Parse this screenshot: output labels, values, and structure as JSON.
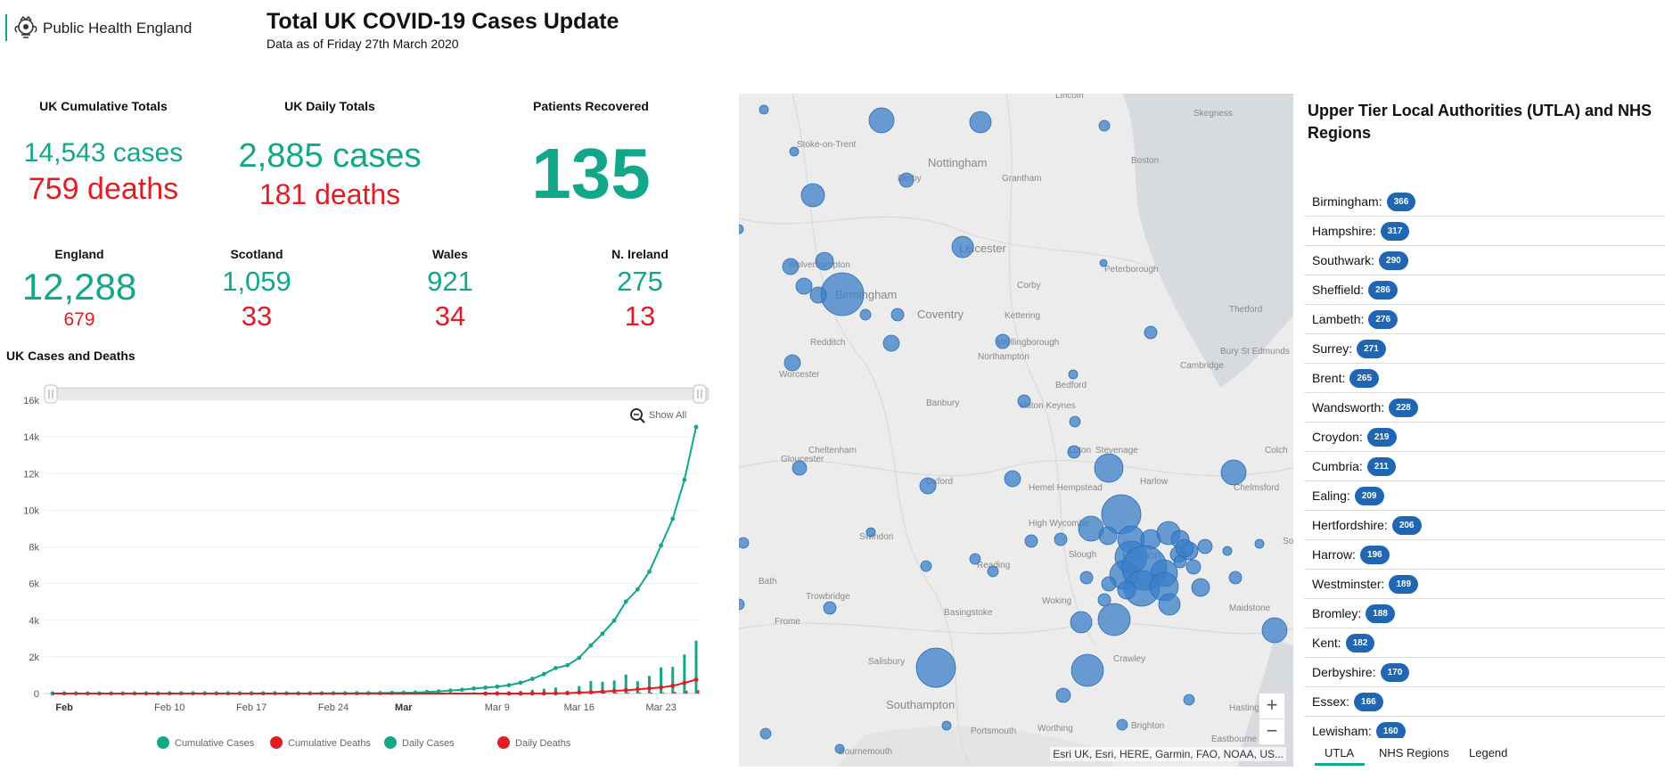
{
  "header": {
    "org": "Public Health England",
    "title": "Total UK COVID-19 Cases Update",
    "subtitle": "Data as of Friday 27th March 2020"
  },
  "cumulative": {
    "label": "UK Cumulative Totals",
    "cases": "14,543 cases",
    "deaths": "759 deaths"
  },
  "daily": {
    "label": "UK Daily Totals",
    "cases": "2,885 cases",
    "deaths": "181 deaths"
  },
  "recovered": {
    "label": "Patients Recovered",
    "value": "135"
  },
  "nations": [
    {
      "name": "England",
      "cases": "12,288",
      "deaths": "679"
    },
    {
      "name": "Scotland",
      "cases": "1,059",
      "deaths": "33"
    },
    {
      "name": "Wales",
      "cases": "921",
      "deaths": "34"
    },
    {
      "name": "N. Ireland",
      "cases": "275",
      "deaths": "13"
    }
  ],
  "chart": {
    "title": "UK Cases and Deaths",
    "show_all": "Show All"
  },
  "chart_data": {
    "type": "line",
    "x_tick_labels": [
      "Feb",
      "Feb 10",
      "Feb 17",
      "Feb 24",
      "Mar",
      "Mar 9",
      "Mar 16",
      "Mar 23"
    ],
    "y_tick_labels": [
      "0",
      "2k",
      "4k",
      "6k",
      "8k",
      "10k",
      "12k",
      "14k",
      "16k"
    ],
    "ylim": [
      0,
      16000
    ],
    "x_range": [
      "Jan 31",
      "Mar 27"
    ],
    "legend_position": "bottom",
    "series": [
      {
        "name": "Cumulative Cases",
        "type": "line",
        "color": "#11a88a",
        "values": [
          2,
          2,
          2,
          2,
          2,
          2,
          2,
          2,
          3,
          3,
          8,
          8,
          9,
          9,
          9,
          9,
          9,
          9,
          9,
          9,
          9,
          9,
          9,
          13,
          13,
          13,
          15,
          20,
          23,
          36,
          40,
          51,
          85,
          115,
          163,
          206,
          273,
          321,
          373,
          456,
          590,
          797,
          1061,
          1391,
          1543,
          1950,
          2626,
          3269,
          3983,
          5018,
          5683,
          6650,
          8077,
          9529,
          11658,
          14543
        ]
      },
      {
        "name": "Cumulative Deaths",
        "type": "line",
        "color": "#e31b23",
        "values": [
          0,
          0,
          0,
          0,
          0,
          0,
          0,
          0,
          0,
          0,
          0,
          0,
          0,
          0,
          0,
          0,
          0,
          0,
          0,
          0,
          0,
          0,
          0,
          0,
          0,
          0,
          0,
          0,
          0,
          0,
          0,
          0,
          0,
          0,
          0,
          0,
          0,
          1,
          2,
          2,
          3,
          6,
          8,
          10,
          21,
          56,
          72,
          104,
          144,
          177,
          233,
          281,
          335,
          422,
          578,
          759
        ]
      },
      {
        "name": "Daily Cases",
        "type": "bar",
        "color": "#11a88a",
        "values": [
          2,
          0,
          0,
          0,
          0,
          0,
          0,
          0,
          1,
          0,
          5,
          0,
          1,
          0,
          0,
          0,
          0,
          0,
          0,
          0,
          0,
          0,
          0,
          4,
          0,
          0,
          2,
          5,
          3,
          13,
          4,
          11,
          34,
          30,
          48,
          43,
          67,
          48,
          52,
          83,
          134,
          207,
          264,
          330,
          152,
          407,
          676,
          643,
          714,
          1035,
          665,
          967,
          1427,
          1452,
          2129,
          2885
        ]
      },
      {
        "name": "Daily Deaths",
        "type": "bar",
        "color": "#e31b23",
        "values": [
          0,
          0,
          0,
          0,
          0,
          0,
          0,
          0,
          0,
          0,
          0,
          0,
          0,
          0,
          0,
          0,
          0,
          0,
          0,
          0,
          0,
          0,
          0,
          0,
          0,
          0,
          0,
          0,
          0,
          0,
          0,
          0,
          0,
          0,
          0,
          0,
          0,
          1,
          1,
          0,
          1,
          3,
          2,
          2,
          11,
          35,
          16,
          32,
          40,
          33,
          56,
          48,
          54,
          87,
          156,
          181
        ]
      }
    ]
  },
  "map": {
    "places": [
      "Lincoln",
      "Skegness",
      "Stoke-on-Trent",
      "Nottingham",
      "Derby",
      "Boston",
      "Grantham",
      "Leicester",
      "Peterborough",
      "Wolverhampton",
      "Birmingham",
      "Coventry",
      "Corby",
      "Kettering",
      "Thetford",
      "Redditch",
      "Wellingborough",
      "Worcester",
      "Northampton",
      "Cambridge",
      "Bury St Edmunds",
      "Bedford",
      "Banbury",
      "Milton Keynes",
      "Cheltenham",
      "Gloucester",
      "Stevenage",
      "Hemel Hempstead",
      "Harlow",
      "Chelmsford",
      "Oxford",
      "High Wycombe",
      "Colch",
      "Swindon",
      "London",
      "Southend-on-Sea",
      "Reading",
      "Bath",
      "Trowbridge",
      "Woking",
      "Maidstone",
      "Basingstoke",
      "Frome",
      "Crawley",
      "Salisbury",
      "Southampton",
      "Worthing",
      "Brighton",
      "Hastings",
      "Portsmouth",
      "Eastbourne",
      "Bournemouth",
      "Luton",
      "Slough"
    ],
    "zoom_in": "+",
    "zoom_out": "−",
    "attribution": "Esri UK, Esri, HERE, Garmin, FAO, NOAA, US..."
  },
  "utla": {
    "title": "Upper Tier Local Authorities (UTLA) and NHS Regions",
    "items": [
      {
        "name": "Birmingham:",
        "count": "366"
      },
      {
        "name": "Hampshire:",
        "count": "317"
      },
      {
        "name": "Southwark:",
        "count": "290"
      },
      {
        "name": "Sheffield:",
        "count": "286"
      },
      {
        "name": "Lambeth:",
        "count": "276"
      },
      {
        "name": "Surrey:",
        "count": "271"
      },
      {
        "name": "Brent:",
        "count": "265"
      },
      {
        "name": "Wandsworth:",
        "count": "228"
      },
      {
        "name": "Croydon:",
        "count": "219"
      },
      {
        "name": "Cumbria:",
        "count": "211"
      },
      {
        "name": "Ealing:",
        "count": "209"
      },
      {
        "name": "Hertfordshire:",
        "count": "206"
      },
      {
        "name": "Harrow:",
        "count": "196"
      },
      {
        "name": "Westminster:",
        "count": "189"
      },
      {
        "name": "Bromley:",
        "count": "188"
      },
      {
        "name": "Kent:",
        "count": "182"
      },
      {
        "name": "Derbyshire:",
        "count": "170"
      },
      {
        "name": "Essex:",
        "count": "166"
      },
      {
        "name": "Lewisham:",
        "count": "160"
      }
    ],
    "tabs": [
      "UTLA",
      "NHS Regions",
      "Legend"
    ]
  }
}
